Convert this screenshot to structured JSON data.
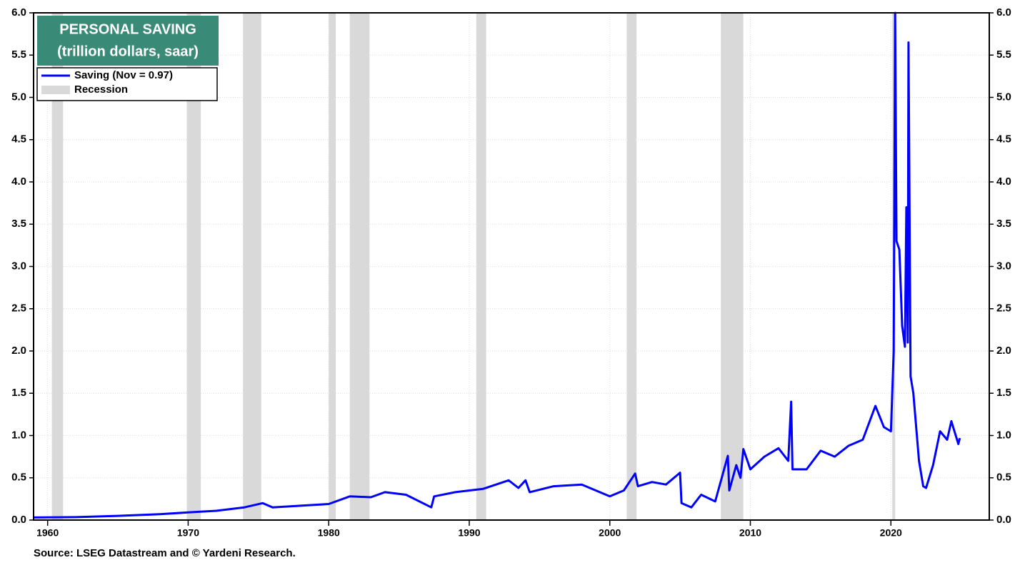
{
  "chart_data": {
    "type": "line",
    "title": "PERSONAL SAVING",
    "subtitle": "(trillion dollars, saar)",
    "source": "Source: LSEG Datastream and © Yardeni Research.",
    "x": [
      1959,
      1962,
      1965,
      1968,
      1970,
      1972,
      1974,
      1975.3,
      1976,
      1978,
      1980,
      1981.5,
      1983,
      1984,
      1985.5,
      1987.3,
      1987.5,
      1989,
      1991,
      1992.8,
      1993.5,
      1994,
      1994.3,
      1996,
      1998,
      1999,
      2000,
      2001,
      2001.8,
      2002,
      2003,
      2004,
      2005,
      2005.1,
      2005.8,
      2006.5,
      2007.5,
      2008.4,
      2008.5,
      2009,
      2009.3,
      2009.5,
      2010,
      2011,
      2012,
      2012.7,
      2012.9,
      2013,
      2014,
      2015,
      2016,
      2017,
      2018,
      2018.9,
      2019.5,
      2020,
      2020.2,
      2020.3,
      2020.4,
      2020.6,
      2020.8,
      2021,
      2021.1,
      2021.2,
      2021.25,
      2021.4,
      2021.6,
      2022,
      2022.3,
      2022.5,
      2023,
      2023.5,
      2024,
      2024.3,
      2024.8,
      2024.9
    ],
    "series": [
      {
        "name": "Saving (Nov = 0.97)",
        "color": "#0000ff",
        "values": [
          0.03,
          0.035,
          0.05,
          0.07,
          0.09,
          0.11,
          0.15,
          0.2,
          0.15,
          0.17,
          0.19,
          0.28,
          0.27,
          0.33,
          0.3,
          0.15,
          0.28,
          0.33,
          0.37,
          0.47,
          0.38,
          0.47,
          0.33,
          0.4,
          0.42,
          0.35,
          0.28,
          0.35,
          0.55,
          0.4,
          0.45,
          0.42,
          0.56,
          0.2,
          0.15,
          0.3,
          0.22,
          0.76,
          0.35,
          0.65,
          0.5,
          0.84,
          0.6,
          0.75,
          0.85,
          0.7,
          1.4,
          0.6,
          0.6,
          0.82,
          0.75,
          0.88,
          0.95,
          1.35,
          1.1,
          1.05,
          2.0,
          6.0,
          3.3,
          3.2,
          2.3,
          2.05,
          3.7,
          2.1,
          5.65,
          1.7,
          1.5,
          0.7,
          0.4,
          0.38,
          0.65,
          1.05,
          0.95,
          1.17,
          0.9,
          0.97
        ]
      }
    ],
    "recession_name": "Recession",
    "recession_color": "#d9d9d9",
    "recessions": [
      [
        1960.3,
        1961.1
      ],
      [
        1969.9,
        1970.9
      ],
      [
        1973.9,
        1975.2
      ],
      [
        1980.0,
        1980.5
      ],
      [
        1981.5,
        1982.9
      ],
      [
        1990.5,
        1991.2
      ],
      [
        2001.2,
        2001.9
      ],
      [
        2007.9,
        2009.5
      ],
      [
        2020.1,
        2020.3
      ]
    ],
    "xlim": [
      1959,
      2027
    ],
    "xticks": [
      1960,
      1970,
      1980,
      1990,
      2000,
      2010,
      2020
    ],
    "ylim": [
      0,
      6
    ],
    "yticks": [
      {
        "value": 0,
        "label": "0.0"
      },
      {
        "value": 0.5,
        "label": "0.5"
      },
      {
        "value": 1,
        "label": "1.0"
      },
      {
        "value": 1.5,
        "label": "1.5"
      },
      {
        "value": 2,
        "label": "2.0"
      },
      {
        "value": 2.5,
        "label": "2.5"
      },
      {
        "value": 3,
        "label": "3.0"
      },
      {
        "value": 3.5,
        "label": "3.5"
      },
      {
        "value": 4,
        "label": "4.0"
      },
      {
        "value": 4.5,
        "label": "4.5"
      },
      {
        "value": 5,
        "label": "5.0"
      },
      {
        "value": 5.5,
        "label": "5.5"
      },
      {
        "value": 6,
        "label": "6.0"
      }
    ],
    "grid": true
  }
}
